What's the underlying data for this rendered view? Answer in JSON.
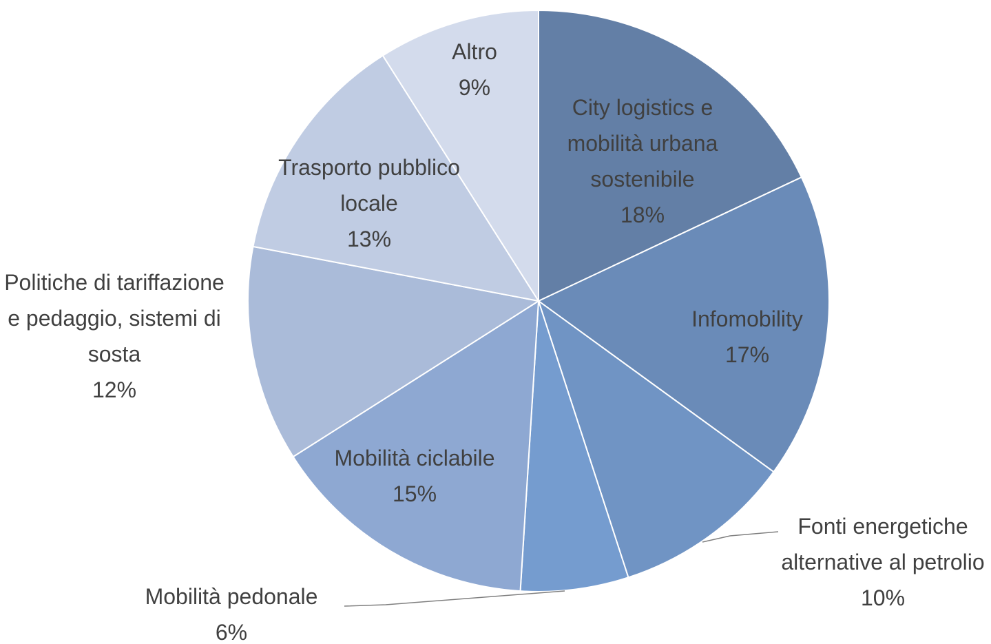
{
  "chart_data": {
    "type": "pie",
    "categories": [
      "City logistics e mobilità urbana sostenibile",
      "Infomobility",
      "Fonti energetiche alternative al petrolio",
      "Mobilità pedonale",
      "Mobilità ciclabile",
      "Politiche di tariffazione e pedaggio, sistemi di sosta",
      "Trasporto pubblico locale",
      "Altro"
    ],
    "values": [
      18,
      17,
      10,
      6,
      15,
      12,
      13,
      9
    ],
    "value_labels": [
      "18%",
      "17%",
      "10%",
      "6%",
      "15%",
      "12%",
      "13%",
      "9%"
    ],
    "colors": [
      "#637fa6",
      "#6a8bb8",
      "#7094c4",
      "#759ccf",
      "#8ea8d2",
      "#aabbd9",
      "#c0cce3",
      "#d3dbec"
    ]
  }
}
